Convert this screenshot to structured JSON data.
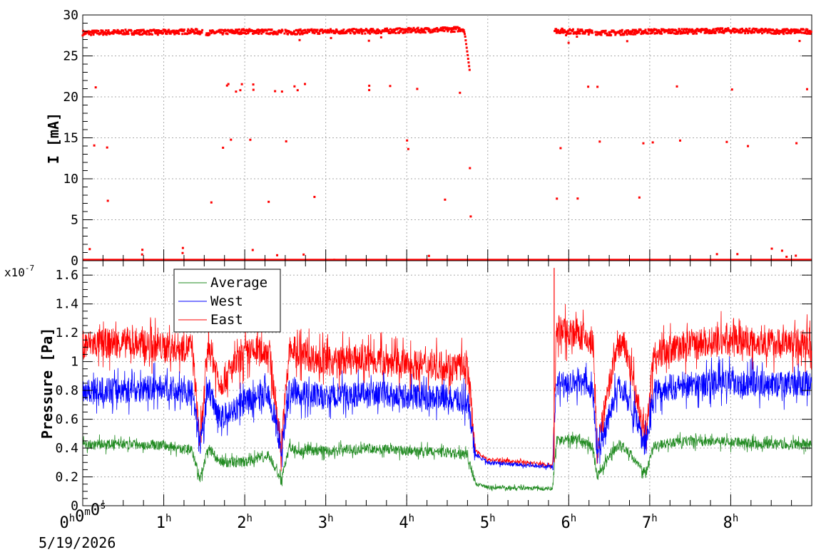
{
  "colors": {
    "average": "#228B22",
    "west": "#0000ff",
    "east": "#ff0000",
    "grid": "#aaaaaa"
  },
  "top_panel": {
    "ylabel": "I [mA]",
    "y_ticks": [
      "0",
      "5",
      "10",
      "15",
      "20",
      "25",
      "30"
    ]
  },
  "bottom_panel": {
    "ylabel": "Pressure [Pa]",
    "exponent_prefix": "x10",
    "exponent_power": "-7",
    "y_ticks": [
      "0",
      "0.2",
      "0.4",
      "0.6",
      "0.8",
      "1",
      "1.2",
      "1.4",
      "1.6"
    ]
  },
  "x_axis": {
    "origin_label": "0h0m0s",
    "hour_labels": [
      "1",
      "2",
      "3",
      "4",
      "5",
      "6",
      "7",
      "8"
    ],
    "date_label": "5/19/2026"
  },
  "legend": {
    "entries": [
      {
        "label": "Average",
        "color": "#228B22"
      },
      {
        "label": "West",
        "color": "#0000ff"
      },
      {
        "label": "East",
        "color": "#ff0000"
      }
    ]
  },
  "chart_data": [
    {
      "type": "scatter",
      "x_unit": "hours",
      "ylabel": "I [mA]",
      "xlim": [
        0,
        9
      ],
      "ylim": [
        0,
        30
      ],
      "grid": true,
      "series": [
        {
          "color": "#ff0000",
          "x": [
            0,
            0.5,
            1.0,
            1.4,
            1.5,
            2.0,
            2.5,
            3.0,
            3.5,
            4.0,
            4.5,
            4.7,
            4.72,
            4.76,
            4.78,
            5.82,
            6.0,
            6.3,
            6.5,
            7.0,
            7.5,
            8.0,
            8.5,
            9.0
          ],
          "y": [
            27.8,
            27.9,
            27.9,
            28.0,
            27.8,
            28.0,
            27.9,
            28.0,
            28.0,
            28.1,
            28.2,
            28.3,
            27.5,
            24.5,
            23.0,
            28.1,
            28.0,
            27.9,
            27.8,
            28.0,
            28.0,
            28.1,
            28.0,
            28.0
          ]
        }
      ]
    },
    {
      "type": "line",
      "x_unit": "hours",
      "ylabel": "Pressure [Pa]",
      "y_scale_factor": "1e-7",
      "xlim": [
        0,
        9
      ],
      "ylim": [
        0,
        1.7
      ],
      "grid": true,
      "legend_position": "top-left",
      "series": [
        {
          "name": "Average",
          "color": "#228B22",
          "x": [
            0,
            0.5,
            1.0,
            1.35,
            1.45,
            1.55,
            1.7,
            2.0,
            2.3,
            2.45,
            2.55,
            2.7,
            3.0,
            3.5,
            4.0,
            4.5,
            4.75,
            4.85,
            5.0,
            5.5,
            5.8,
            5.85,
            6.1,
            6.3,
            6.35,
            6.6,
            6.7,
            6.95,
            7.05,
            7.5,
            8.0,
            8.5,
            9.0
          ],
          "y": [
            0.42,
            0.43,
            0.42,
            0.38,
            0.18,
            0.4,
            0.3,
            0.3,
            0.35,
            0.17,
            0.4,
            0.38,
            0.38,
            0.4,
            0.38,
            0.37,
            0.35,
            0.15,
            0.13,
            0.12,
            0.12,
            0.45,
            0.46,
            0.4,
            0.2,
            0.42,
            0.4,
            0.22,
            0.42,
            0.45,
            0.44,
            0.43,
            0.42
          ]
        },
        {
          "name": "West",
          "color": "#0000ff",
          "x": [
            0,
            0.5,
            1.0,
            1.35,
            1.45,
            1.55,
            1.7,
            2.0,
            2.3,
            2.45,
            2.55,
            2.7,
            3.0,
            3.5,
            4.0,
            4.5,
            4.75,
            4.85,
            5.0,
            5.5,
            5.8,
            5.85,
            6.1,
            6.3,
            6.35,
            6.6,
            6.7,
            6.95,
            7.05,
            7.5,
            8.0,
            8.5,
            9.0
          ],
          "y": [
            0.8,
            0.8,
            0.82,
            0.78,
            0.4,
            0.82,
            0.6,
            0.72,
            0.78,
            0.38,
            0.8,
            0.78,
            0.75,
            0.78,
            0.76,
            0.75,
            0.72,
            0.35,
            0.3,
            0.28,
            0.27,
            0.85,
            0.87,
            0.8,
            0.35,
            0.82,
            0.8,
            0.4,
            0.8,
            0.84,
            0.86,
            0.84,
            0.85
          ]
        },
        {
          "name": "East",
          "color": "#ff0000",
          "x": [
            0,
            0.5,
            1.0,
            1.35,
            1.45,
            1.55,
            1.7,
            2.0,
            2.3,
            2.45,
            2.55,
            2.7,
            3.0,
            3.5,
            4.0,
            4.5,
            4.75,
            4.85,
            5.0,
            5.5,
            5.8,
            5.85,
            6.1,
            6.3,
            6.35,
            6.6,
            6.7,
            6.95,
            7.05,
            7.5,
            8.0,
            8.5,
            9.0
          ],
          "y": [
            1.12,
            1.13,
            1.1,
            1.1,
            0.42,
            1.12,
            0.85,
            1.05,
            1.08,
            0.4,
            1.08,
            1.05,
            1.0,
            1.02,
            0.98,
            0.97,
            0.96,
            0.38,
            0.32,
            0.3,
            0.28,
            1.22,
            1.2,
            1.12,
            0.38,
            1.12,
            1.1,
            0.45,
            1.05,
            1.12,
            1.15,
            1.13,
            1.12
          ]
        }
      ]
    }
  ]
}
